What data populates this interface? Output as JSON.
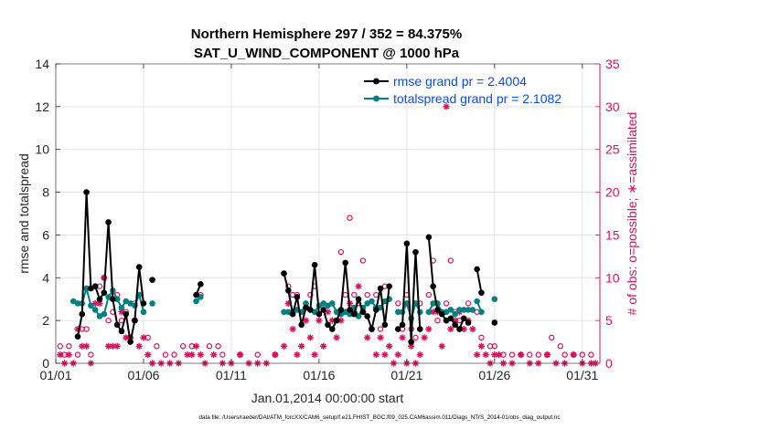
{
  "chart_data": {
    "type": "line",
    "title": "Northern Hemisphere 297 / 352 = 84.375%",
    "subtitle": "SAT_U_WIND_COMPONENT @ 1000 hPa",
    "xlabel": "Jan.01,2014 00:00:00 start",
    "ylabel_left": "rmse and totalspread",
    "ylabel_right": "# of obs: o=possible; ∗=assimilated",
    "footnote": "data file: /Users/raeder/DAI/ATM_forcXX/CAM6_setup/f.e21.FHIST_BGC.f09_025.CAM6assim.011/Diags_NTrS_2014-01/obs_diag_output.nc",
    "xlim": [
      1,
      32
    ],
    "ylim_left": [
      0,
      14
    ],
    "ylim_right": [
      0,
      35
    ],
    "x_ticks": [
      1,
      6,
      11,
      16,
      21,
      26,
      31
    ],
    "x_tick_labels": [
      "01/01",
      "01/06",
      "01/11",
      "01/16",
      "01/21",
      "01/26",
      "01/31"
    ],
    "y_left_ticks": [
      "0",
      "2",
      "4",
      "6",
      "8",
      "10",
      "12",
      "14"
    ],
    "y_right_ticks": [
      "0",
      "5",
      "10",
      "15",
      "20",
      "25",
      "30",
      "35"
    ],
    "grid": true,
    "legend_position": "top-right",
    "colors": {
      "rmse": "#000000",
      "spread": "#008080",
      "obs": "#d6105f",
      "legend_text": "#0b4be0"
    },
    "series": [
      {
        "name": "rmse grand pr = 2.4004",
        "axis": "left",
        "segments": [
          [
            [
              2.25,
              1.25
            ],
            [
              2.5,
              2.3
            ],
            [
              2.75,
              8.0
            ],
            [
              3.0,
              3.5
            ],
            [
              3.25,
              3.6
            ],
            [
              3.5,
              3.0
            ],
            [
              3.75,
              3.3
            ],
            [
              4.0,
              6.6
            ],
            [
              4.25,
              3.0
            ],
            [
              4.5,
              1.8
            ],
            [
              4.75,
              1.5
            ],
            [
              5.0,
              2.3
            ],
            [
              5.25,
              1.0
            ],
            [
              5.5,
              2.0
            ],
            [
              5.75,
              4.5
            ],
            [
              6.0,
              2.8
            ]
          ],
          [
            [
              6.5,
              3.9
            ]
          ],
          [
            [
              9.0,
              3.2
            ],
            [
              9.25,
              3.7
            ]
          ],
          [
            [
              14.0,
              4.2
            ],
            [
              14.25,
              3.4
            ],
            [
              14.5,
              2.3
            ],
            [
              14.75,
              3.1
            ],
            [
              15.0,
              1.8
            ],
            [
              15.25,
              2.6
            ],
            [
              15.5,
              2.5
            ],
            [
              15.75,
              4.6
            ],
            [
              16.0,
              2.3
            ],
            [
              16.25,
              2.5
            ],
            [
              16.5,
              1.8
            ],
            [
              16.75,
              1.6
            ],
            [
              17.0,
              2.0
            ],
            [
              17.25,
              2.5
            ],
            [
              17.5,
              4.7
            ],
            [
              17.75,
              2.5
            ],
            [
              18.0,
              2.3
            ],
            [
              18.25,
              3.0
            ],
            [
              18.5,
              2.4
            ],
            [
              18.75,
              2.2
            ],
            [
              19.0,
              1.6
            ],
            [
              19.25,
              2.5
            ],
            [
              19.5,
              3.5
            ],
            [
              19.75,
              1.8
            ],
            [
              20.0,
              3.6
            ]
          ],
          [
            [
              20.5,
              1.6
            ],
            [
              20.75,
              1.8
            ],
            [
              21.0,
              5.6
            ],
            [
              21.25,
              1.0
            ],
            [
              21.5,
              5.2
            ],
            [
              21.75,
              1.6
            ]
          ],
          [
            [
              22.25,
              5.9
            ],
            [
              22.5,
              3.6
            ],
            [
              22.75,
              2.5
            ],
            [
              23.0,
              2.3
            ],
            [
              23.25,
              2.0
            ],
            [
              23.5,
              2.1
            ],
            [
              23.75,
              1.8
            ],
            [
              24.0,
              1.6
            ],
            [
              24.25,
              2.1
            ],
            [
              24.5,
              1.9
            ]
          ],
          [
            [
              25.0,
              4.4
            ],
            [
              25.25,
              3.3
            ]
          ],
          [
            [
              26.0,
              1.9
            ]
          ]
        ]
      },
      {
        "name": "totalspread grand pr = 2.1082",
        "axis": "left",
        "segments": [
          [
            [
              2.0,
              2.9
            ],
            [
              2.25,
              2.8
            ],
            [
              2.5,
              2.8
            ],
            [
              2.75,
              3.5
            ],
            [
              3.0,
              2.7
            ],
            [
              3.25,
              2.5
            ],
            [
              3.5,
              2.2
            ],
            [
              3.75,
              2.3
            ],
            [
              4.0,
              3.1
            ],
            [
              4.25,
              3.4
            ],
            [
              4.5,
              3.0
            ],
            [
              4.75,
              2.6
            ],
            [
              5.0,
              2.9
            ],
            [
              5.25,
              2.8
            ],
            [
              5.5,
              2.7
            ],
            [
              5.75,
              3.2
            ],
            [
              6.0,
              2.4
            ]
          ],
          [
            [
              6.5,
              2.8
            ]
          ],
          [
            [
              9.0,
              2.9
            ],
            [
              9.25,
              3.1
            ]
          ],
          [
            [
              14.0,
              2.4
            ],
            [
              14.25,
              2.4
            ],
            [
              14.5,
              2.4
            ],
            [
              14.75,
              2.5
            ],
            [
              15.0,
              2.4
            ],
            [
              15.25,
              2.8
            ],
            [
              15.5,
              2.5
            ],
            [
              15.75,
              2.4
            ],
            [
              16.0,
              2.7
            ],
            [
              16.25,
              2.8
            ],
            [
              16.5,
              2.7
            ],
            [
              16.75,
              2.8
            ],
            [
              17.0,
              2.4
            ],
            [
              17.25,
              2.3
            ],
            [
              17.5,
              2.4
            ],
            [
              17.75,
              2.3
            ],
            [
              18.0,
              2.6
            ],
            [
              18.25,
              2.2
            ],
            [
              18.5,
              2.6
            ],
            [
              18.75,
              2.8
            ],
            [
              19.0,
              2.9
            ],
            [
              19.25,
              2.6
            ],
            [
              19.5,
              2.6
            ],
            [
              19.75,
              2.9
            ],
            [
              20.0,
              3.0
            ]
          ],
          [
            [
              20.5,
              2.4
            ],
            [
              20.75,
              2.4
            ],
            [
              21.0,
              2.8
            ],
            [
              21.25,
              2.1
            ],
            [
              21.5,
              2.8
            ],
            [
              21.75,
              2.4
            ]
          ],
          [
            [
              22.25,
              2.4
            ],
            [
              22.5,
              2.8
            ],
            [
              22.75,
              2.8
            ],
            [
              23.0,
              2.4
            ],
            [
              23.25,
              2.4
            ],
            [
              23.5,
              2.5
            ],
            [
              23.75,
              2.3
            ],
            [
              24.0,
              2.5
            ],
            [
              24.25,
              2.5
            ],
            [
              24.5,
              2.5
            ],
            [
              24.75,
              2.5
            ]
          ],
          [
            [
              25.0,
              2.9
            ],
            [
              25.25,
              2.4
            ]
          ],
          [
            [
              26.0,
              3.0
            ]
          ]
        ]
      }
    ],
    "obs_possible": [
      [
        1.25,
        2
      ],
      [
        1.5,
        1
      ],
      [
        1.75,
        2
      ],
      [
        2.25,
        1
      ],
      [
        2.5,
        4
      ],
      [
        2.75,
        4
      ],
      [
        3.0,
        1
      ],
      [
        3.25,
        9
      ],
      [
        3.5,
        9
      ],
      [
        3.75,
        10
      ],
      [
        4.0,
        5
      ],
      [
        4.25,
        6
      ],
      [
        4.5,
        8
      ],
      [
        4.75,
        5
      ],
      [
        5.0,
        6
      ],
      [
        5.25,
        3
      ],
      [
        5.5,
        7
      ],
      [
        5.75,
        8
      ],
      [
        6.0,
        6
      ],
      [
        6.25,
        3
      ],
      [
        6.75,
        2
      ],
      [
        7.25,
        1
      ],
      [
        7.75,
        1
      ],
      [
        8.25,
        2
      ],
      [
        8.75,
        2
      ],
      [
        9.25,
        8
      ],
      [
        9.75,
        2
      ],
      [
        10.25,
        2
      ],
      [
        10.5,
        1
      ],
      [
        11.5,
        1
      ],
      [
        12.5,
        1
      ],
      [
        13.5,
        1
      ],
      [
        14.25,
        9
      ],
      [
        14.5,
        8
      ],
      [
        14.75,
        8
      ],
      [
        15.25,
        7
      ],
      [
        15.5,
        8
      ],
      [
        15.75,
        9
      ],
      [
        16.25,
        7
      ],
      [
        16.75,
        7
      ],
      [
        17.25,
        13
      ],
      [
        17.5,
        8
      ],
      [
        17.75,
        17
      ],
      [
        18.0,
        8
      ],
      [
        18.25,
        7
      ],
      [
        18.5,
        12
      ],
      [
        18.75,
        8
      ],
      [
        19.25,
        8
      ],
      [
        19.5,
        4
      ],
      [
        19.75,
        9
      ],
      [
        20.5,
        7
      ],
      [
        20.75,
        4
      ],
      [
        21.0,
        8
      ],
      [
        21.25,
        4
      ],
      [
        21.5,
        3
      ],
      [
        21.75,
        7
      ],
      [
        22.25,
        8
      ],
      [
        22.5,
        12
      ],
      [
        22.75,
        5
      ],
      [
        23.25,
        7
      ],
      [
        23.5,
        12
      ],
      [
        23.75,
        6
      ],
      [
        24.0,
        5
      ],
      [
        24.5,
        7
      ],
      [
        25.0,
        6
      ],
      [
        25.25,
        3
      ],
      [
        25.75,
        2
      ],
      [
        26.0,
        2
      ],
      [
        26.5,
        1
      ],
      [
        27.0,
        1
      ],
      [
        27.5,
        1
      ],
      [
        28.0,
        1
      ],
      [
        28.5,
        1
      ],
      [
        29.0,
        1
      ],
      [
        29.25,
        3
      ],
      [
        29.75,
        2
      ],
      [
        30.0,
        1
      ],
      [
        30.5,
        1
      ],
      [
        31.0,
        1
      ],
      [
        31.5,
        1
      ]
    ],
    "obs_assimilated": [
      [
        1.25,
        1
      ],
      [
        1.5,
        0
      ],
      [
        1.75,
        1
      ],
      [
        2.0,
        0
      ],
      [
        2.25,
        4
      ],
      [
        2.5,
        2
      ],
      [
        2.75,
        2
      ],
      [
        3.0,
        0
      ],
      [
        3.25,
        7
      ],
      [
        3.5,
        7
      ],
      [
        3.75,
        10
      ],
      [
        4.0,
        2
      ],
      [
        4.25,
        2
      ],
      [
        4.5,
        2
      ],
      [
        4.75,
        6
      ],
      [
        5.0,
        3
      ],
      [
        5.25,
        3
      ],
      [
        5.5,
        5
      ],
      [
        5.75,
        2
      ],
      [
        6.0,
        3
      ],
      [
        6.25,
        1
      ],
      [
        6.5,
        0
      ],
      [
        7.0,
        0
      ],
      [
        7.5,
        0
      ],
      [
        8.0,
        0
      ],
      [
        8.5,
        1
      ],
      [
        8.75,
        1
      ],
      [
        9.0,
        2
      ],
      [
        9.25,
        1
      ],
      [
        9.5,
        0
      ],
      [
        10.0,
        1
      ],
      [
        10.5,
        0
      ],
      [
        11.0,
        0
      ],
      [
        11.5,
        1
      ],
      [
        12.0,
        0
      ],
      [
        12.5,
        0
      ],
      [
        13.0,
        0
      ],
      [
        13.5,
        1
      ],
      [
        14.0,
        2
      ],
      [
        14.25,
        7
      ],
      [
        14.5,
        4
      ],
      [
        14.75,
        1
      ],
      [
        15.0,
        2
      ],
      [
        15.25,
        5
      ],
      [
        15.5,
        3
      ],
      [
        15.75,
        1
      ],
      [
        16.0,
        5
      ],
      [
        16.25,
        2
      ],
      [
        16.5,
        6
      ],
      [
        16.75,
        5
      ],
      [
        17.0,
        3
      ],
      [
        17.25,
        5
      ],
      [
        17.5,
        6
      ],
      [
        17.75,
        7
      ],
      [
        18.0,
        6
      ],
      [
        18.25,
        9
      ],
      [
        18.5,
        6
      ],
      [
        18.75,
        3
      ],
      [
        19.0,
        4
      ],
      [
        19.25,
        1
      ],
      [
        19.5,
        3
      ],
      [
        19.75,
        1
      ],
      [
        20.0,
        2
      ],
      [
        20.25,
        0
      ],
      [
        20.5,
        1
      ],
      [
        20.75,
        3
      ],
      [
        21.0,
        0
      ],
      [
        21.25,
        2
      ],
      [
        21.5,
        0
      ],
      [
        21.75,
        1
      ],
      [
        22.0,
        3
      ],
      [
        22.25,
        4
      ],
      [
        22.5,
        6
      ],
      [
        22.75,
        6
      ],
      [
        23.0,
        2
      ],
      [
        23.25,
        30
      ],
      [
        23.5,
        4
      ],
      [
        23.75,
        5
      ],
      [
        24.0,
        6
      ],
      [
        24.25,
        4
      ],
      [
        24.5,
        5
      ],
      [
        24.75,
        4
      ],
      [
        25.0,
        1
      ],
      [
        25.25,
        2
      ],
      [
        25.5,
        1
      ],
      [
        25.75,
        0
      ],
      [
        26.0,
        1
      ],
      [
        26.25,
        1
      ],
      [
        26.5,
        0
      ],
      [
        27.0,
        0
      ],
      [
        27.5,
        1
      ],
      [
        28.0,
        0
      ],
      [
        28.5,
        0
      ],
      [
        29.0,
        1
      ],
      [
        29.5,
        0
      ],
      [
        30.0,
        0
      ],
      [
        30.5,
        1
      ],
      [
        31.0,
        0
      ],
      [
        31.5,
        0
      ],
      [
        31.75,
        0
      ]
    ]
  }
}
